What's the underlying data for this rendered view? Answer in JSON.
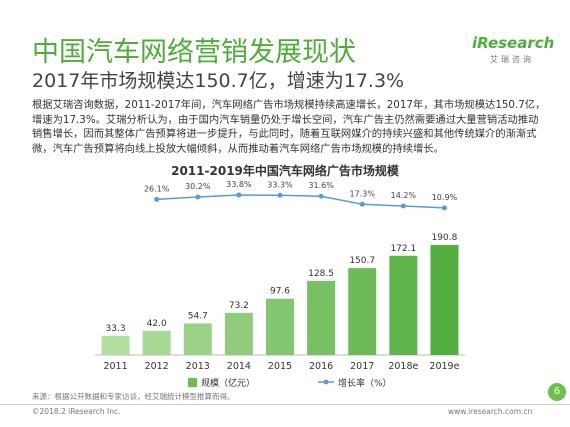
{
  "header": {
    "title": "中国汽车网络营销发展现状",
    "subtitle": "2017年市场规模达150.7亿，增速为17.3%",
    "logo": "iResearch",
    "logo_sub": "艾瑞咨询"
  },
  "body": "根据艾瑞咨询数据，2011-2017年间，汽车网络广告市场规模持续高速增长，2017年，其市场规模达150.7亿，增速为17.3%。艾瑞分析认为，由于国内汽车销量仍处于增长空间，汽车广告主仍然需要通过大量营销活动推动销售增长，因而其整体广告预算将进一步提升，与此同时，随着互联网媒介的持续兴盛和其他传统媒介的渐渐式微，汽车广告预算将向线上投放大幅倾斜，从而推动着汽车网络广告市场规模的持续增长。",
  "chart_data": {
    "type": "bar_line",
    "title": "2011-2019年中国汽车网络广告市场规模",
    "categories": [
      "2011",
      "2012",
      "2013",
      "2014",
      "2015",
      "2016",
      "2017",
      "2018e",
      "2019e"
    ],
    "series": [
      {
        "name": "规模（亿元）",
        "type": "bar",
        "color": "#6cc04a",
        "colors": [
          "#b4dea0",
          "#a8d894",
          "#9cd288",
          "#90cc7c",
          "#84c670",
          "#78c064",
          "#6cba58",
          "#60b44c",
          "#54ae40"
        ],
        "values": [
          33.3,
          42.0,
          54.7,
          73.2,
          97.6,
          128.5,
          150.7,
          172.1,
          190.8
        ],
        "value_labels": [
          "33.3",
          "42.0",
          "54.7",
          "73.2",
          "97.6",
          "128.5",
          "150.7",
          "172.1",
          "190.8"
        ]
      },
      {
        "name": "增长率（%）",
        "type": "line",
        "color": "#5b9bd5",
        "values": [
          null,
          26.1,
          30.2,
          33.8,
          33.3,
          31.6,
          17.3,
          14.2,
          10.9
        ],
        "value_labels": [
          null,
          "26.1%",
          "30.2%",
          "33.8%",
          "33.3%",
          "31.6%",
          "17.3%",
          "14.2%",
          "10.9%"
        ]
      }
    ]
  },
  "footer": {
    "source": "来源：根据公开数据和专家访谈，经艾瑞统计模型推算而得。",
    "copyright": "©2018.2 iResearch Inc.",
    "url": "www.iresearch.com.cn",
    "page": "6"
  }
}
